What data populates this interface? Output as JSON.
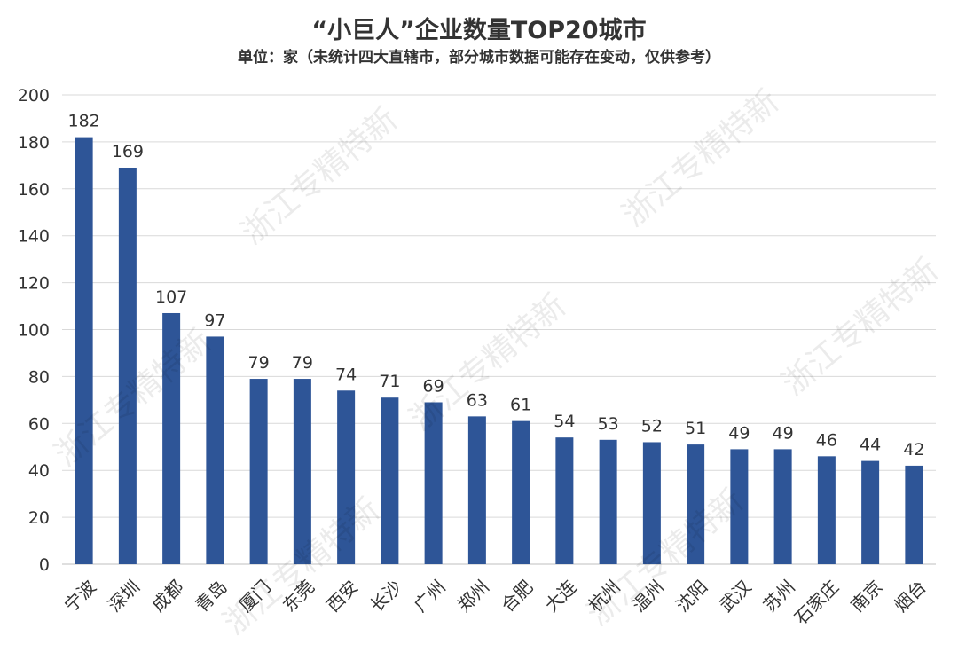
{
  "chart_data": {
    "type": "bar",
    "title": "“小巨人”企业数量TOP20城市",
    "subtitle": "单位：家（未统计四大直辖市，部分城市数据可能存在变动，仅供参考）",
    "categories": [
      "宁波",
      "深圳",
      "成都",
      "青岛",
      "厦门",
      "东莞",
      "西安",
      "长沙",
      "广州",
      "郑州",
      "合肥",
      "大连",
      "杭州",
      "温州",
      "沈阳",
      "武汉",
      "苏州",
      "石家庄",
      "南京",
      "烟台"
    ],
    "values": [
      182,
      169,
      107,
      97,
      79,
      79,
      74,
      71,
      69,
      63,
      61,
      54,
      53,
      52,
      51,
      49,
      49,
      46,
      44,
      42
    ],
    "ylim": [
      0,
      200
    ],
    "yticks": [
      0,
      20,
      40,
      60,
      80,
      100,
      120,
      140,
      160,
      180,
      200
    ],
    "grid": true,
    "data_labels": true,
    "bar_color": "#2E5597"
  },
  "watermark": "浙江专精特新"
}
